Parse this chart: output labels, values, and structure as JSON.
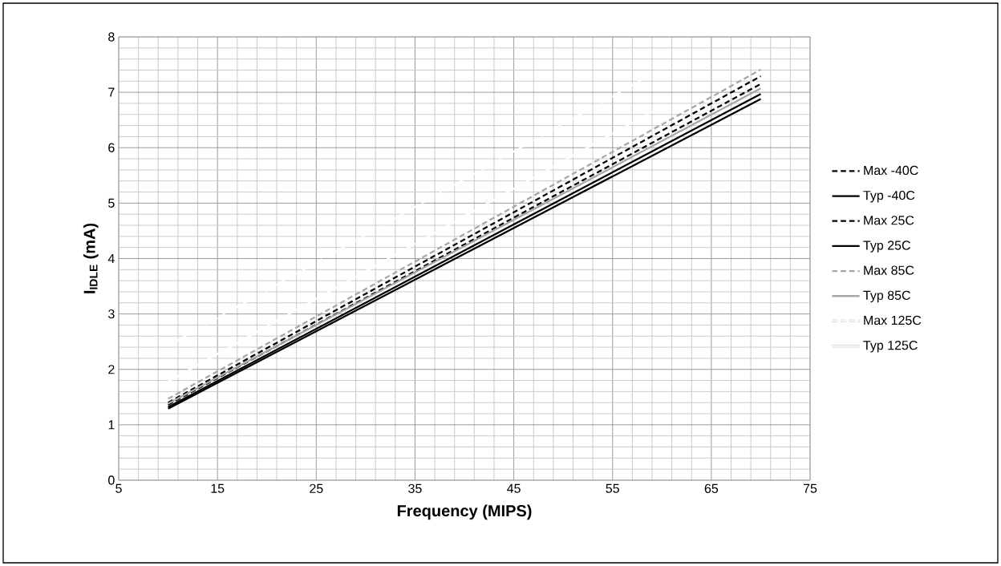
{
  "chart_data": {
    "type": "line",
    "xlabel": "Frequency (MIPS)",
    "ylabel": "I$_{IDLE}$ (mA)",
    "xlim": [
      5,
      75
    ],
    "ylim": [
      0,
      8
    ],
    "xticks": [
      5,
      15,
      25,
      35,
      45,
      55,
      65,
      75
    ],
    "yticks": [
      0,
      1,
      2,
      3,
      4,
      5,
      6,
      7,
      8
    ],
    "grid": true,
    "legend": "right",
    "marker": "none",
    "series": [
      {
        "name": "Max -40C",
        "color": "#000000",
        "line_style": "dashed",
        "x": [
          10,
          70
        ],
        "values": [
          1.4,
          7.29
        ]
      },
      {
        "name": "Typ -40C",
        "color": "#000000",
        "line_style": "solid",
        "x": [
          10,
          70
        ],
        "values": [
          1.32,
          6.97
        ]
      },
      {
        "name": "Max 25C",
        "color": "#000000",
        "line_style": "dashed",
        "x": [
          10,
          70
        ],
        "values": [
          1.36,
          7.15
        ]
      },
      {
        "name": "Typ 25C",
        "color": "#000000",
        "line_style": "solid",
        "x": [
          10,
          70
        ],
        "values": [
          1.29,
          6.88
        ]
      },
      {
        "name": "Max 85C",
        "color": "#a6a6a6",
        "line_style": "dashed",
        "x": [
          10,
          70
        ],
        "values": [
          1.47,
          7.41
        ]
      },
      {
        "name": "Typ 85C",
        "color": "#a6a6a6",
        "line_style": "solid",
        "x": [
          10,
          70
        ],
        "values": [
          1.38,
          7.07
        ]
      },
      {
        "name": "Max 125C",
        "color": "#ffffff",
        "line_style": "dashed",
        "x": [
          10,
          60
        ],
        "values": [
          2.43,
          7.43
        ]
      },
      {
        "name": "Typ 125C",
        "color": "#ffffff",
        "line_style": "solid",
        "x": [
          10,
          60
        ],
        "values": [
          1.78,
          6.75
        ]
      }
    ]
  }
}
